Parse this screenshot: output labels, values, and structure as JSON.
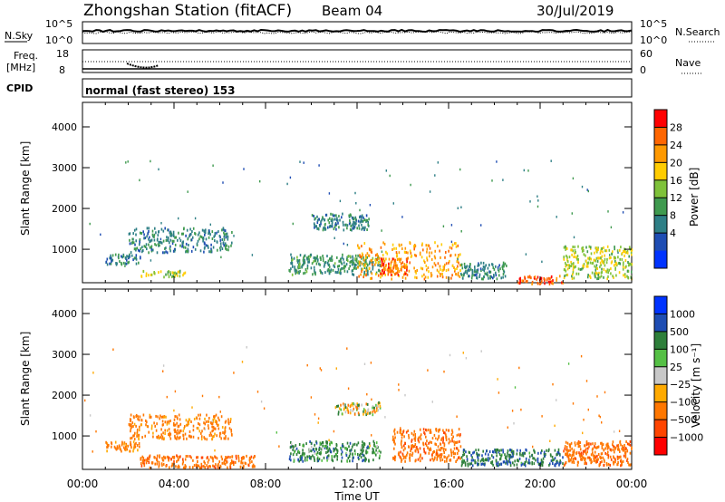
{
  "header": {
    "title": "Zhongshan Station (fitACF)",
    "beam": "Beam 04",
    "date": "30/Jul/2019",
    "mode": "normal (fast stereo) 153"
  },
  "top_panels": {
    "nsky_label": "N.Sky",
    "nsky_ticks": [
      "10^5",
      "10^0"
    ],
    "nsearch_label": "N.Search",
    "nsearch_ticks": [
      "10^5",
      "10^0"
    ],
    "freq_label_1": "Freq.",
    "freq_label_2": "[MHz]",
    "freq_ticks": [
      "18",
      "8"
    ],
    "nave_label": "Nave",
    "nave_ticks": [
      "60",
      "0"
    ],
    "cpid_label": "CPID"
  },
  "chart_data": [
    {
      "type": "heatmap",
      "title": "Power",
      "ylabel": "Slant Range [km]",
      "xlabel": "Time UT",
      "x_ticks": [
        "00:00",
        "04:00",
        "08:00",
        "12:00",
        "16:00",
        "20:00",
        "00:00"
      ],
      "y_ticks": [
        "1000",
        "2000",
        "3000",
        "4000"
      ],
      "ylim": [
        180,
        4600
      ],
      "xlim_hours": [
        0,
        24
      ],
      "colorbar": {
        "label": "Power [dB]",
        "ticks": [
          "4",
          "8",
          "12",
          "16",
          "20",
          "24",
          "28"
        ],
        "range": [
          0,
          30
        ],
        "colors": [
          "#0033ff",
          "#1e4db3",
          "#2e7f86",
          "#3f9a4f",
          "#7fc23a",
          "#ffcc00",
          "#ff9900",
          "#ff6600",
          "#ff0000"
        ]
      },
      "regions": [
        {
          "t0": 1.0,
          "t1": 2.5,
          "r0": 650,
          "r1": 900,
          "level": 8
        },
        {
          "t0": 2.0,
          "t1": 6.5,
          "r0": 950,
          "r1": 1550,
          "level": 8
        },
        {
          "t0": 2.5,
          "t1": 4.5,
          "r0": 350,
          "r1": 500,
          "level": 16
        },
        {
          "t0": 9.0,
          "t1": 13.0,
          "r0": 400,
          "r1": 900,
          "level": 10
        },
        {
          "t0": 10.0,
          "t1": 12.5,
          "r0": 1500,
          "r1": 1900,
          "level": 8
        },
        {
          "t0": 12.0,
          "t1": 16.5,
          "r0": 300,
          "r1": 1200,
          "level": 22
        },
        {
          "t0": 13.0,
          "t1": 14.2,
          "r0": 400,
          "r1": 800,
          "level": 27
        },
        {
          "t0": 16.5,
          "t1": 18.5,
          "r0": 300,
          "r1": 700,
          "level": 8
        },
        {
          "t0": 19.0,
          "t1": 21.0,
          "r0": 180,
          "r1": 380,
          "level": 27
        },
        {
          "t0": 21.0,
          "t1": 24.0,
          "r0": 300,
          "r1": 1100,
          "level": 16
        }
      ]
    },
    {
      "type": "heatmap",
      "title": "Velocity",
      "ylabel": "Slant Range [km]",
      "xlabel": "Time UT",
      "x_ticks": [
        "00:00",
        "04:00",
        "08:00",
        "12:00",
        "16:00",
        "20:00",
        "00:00"
      ],
      "y_ticks": [
        "1000",
        "2000",
        "3000",
        "4000"
      ],
      "ylim": [
        180,
        4600
      ],
      "xlim_hours": [
        0,
        24
      ],
      "colorbar": {
        "label": "Velocity [m s⁻¹]",
        "ticks": [
          "1000",
          "500",
          "100",
          "25",
          "−25",
          "−100",
          "−500",
          "−1000"
        ],
        "colors": [
          "#0033ff",
          "#1e4db3",
          "#2e7f3a",
          "#55c045",
          "#c8c8c8",
          "#ffaa00",
          "#ff7700",
          "#ff4400",
          "#ff0000"
        ]
      },
      "regions": [
        {
          "t0": 1.0,
          "t1": 2.5,
          "r0": 650,
          "r1": 900,
          "vel": -200
        },
        {
          "t0": 2.0,
          "t1": 6.5,
          "r0": 950,
          "r1": 1550,
          "vel": -200
        },
        {
          "t0": 2.5,
          "t1": 7.5,
          "r0": 250,
          "r1": 550,
          "vel": -300
        },
        {
          "t0": 9.0,
          "t1": 13.0,
          "r0": 400,
          "r1": 900,
          "vel": 150
        },
        {
          "t0": 11.0,
          "t1": 13.0,
          "r0": 1550,
          "r1": 1850,
          "vel": 0
        },
        {
          "t0": 13.5,
          "t1": 16.5,
          "r0": 400,
          "r1": 1200,
          "vel": -300
        },
        {
          "t0": 16.5,
          "t1": 21.0,
          "r0": 300,
          "r1": 700,
          "vel": 200
        },
        {
          "t0": 21.0,
          "t1": 24.0,
          "r0": 300,
          "r1": 900,
          "vel": -300
        }
      ]
    }
  ]
}
